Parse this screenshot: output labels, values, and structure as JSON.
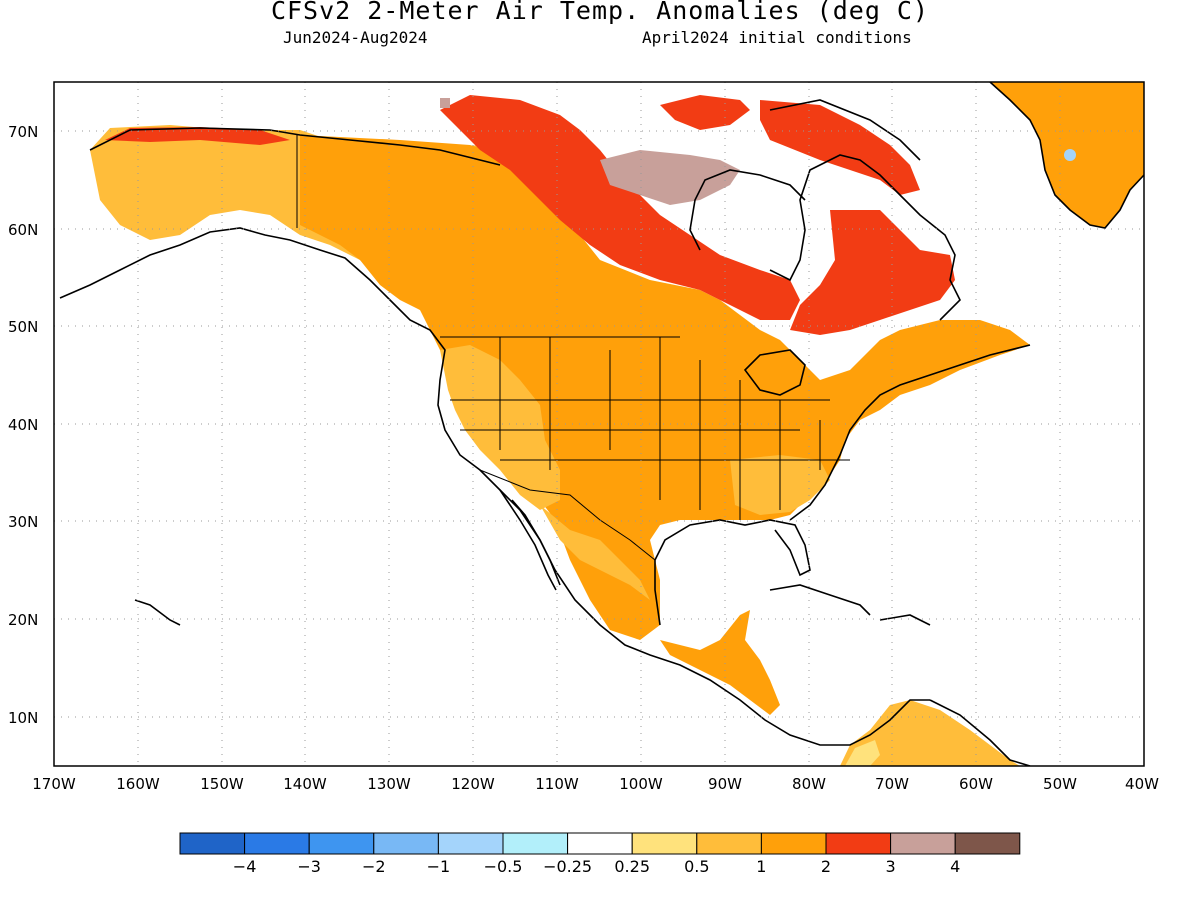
{
  "title": "CFSv2 2-Meter Air Temp. Anomalies (deg C)",
  "subtitle_left": "Jun2024-Aug2024",
  "subtitle_right": "April2024 initial conditions",
  "map": {
    "lon_range": [
      -170,
      -40
    ],
    "lat_range": [
      5,
      75
    ],
    "lat_labels": [
      "70N",
      "60N",
      "50N",
      "40N",
      "30N",
      "20N",
      "10N"
    ],
    "lon_labels": [
      "170W",
      "160W",
      "150W",
      "140W",
      "130W",
      "120W",
      "110W",
      "100W",
      "90W",
      "80W",
      "70W",
      "60W",
      "50W",
      "40W"
    ]
  },
  "colorbar": {
    "colors": [
      "#1f64c8",
      "#2a7ae6",
      "#3e95f0",
      "#78b8f5",
      "#a4d4fb",
      "#b2effa",
      "#ffffff",
      "#ffe27c",
      "#ffbd3a",
      "#ffa00a",
      "#f23c14",
      "#c8a09a",
      "#7e564a"
    ],
    "labels": [
      "−4",
      "−3",
      "−2",
      "−1",
      "−0.5",
      "−0.25",
      "0.25",
      "0.5",
      "1",
      "2",
      "3",
      "4"
    ]
  },
  "anomaly_colors": {
    "light": "#ffe27c",
    "mid": "#ffbd3a",
    "strong": "#ffa00a",
    "red": "#f23c14",
    "brown": "#c8a09a",
    "blue": "#a4d4fb"
  }
}
